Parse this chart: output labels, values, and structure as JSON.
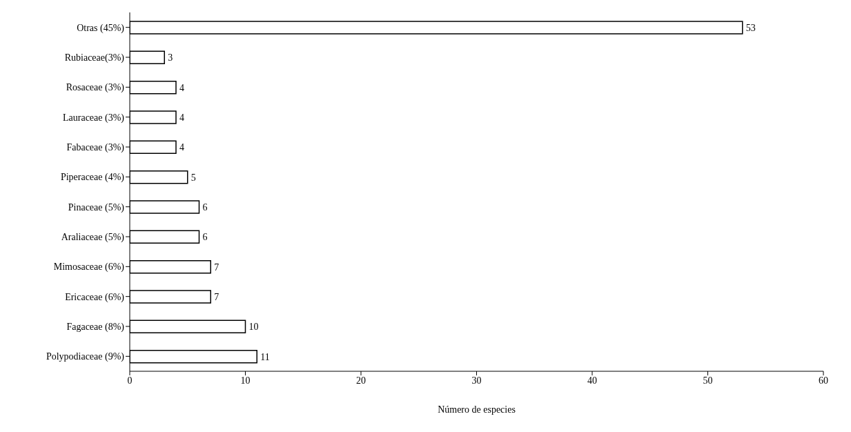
{
  "chart_data": {
    "type": "bar",
    "orientation": "horizontal",
    "categories": [
      "Otras (45%)",
      "Rubiaceae(3%)",
      "Rosaceae (3%)",
      "Lauraceae (3%)",
      "Fabaceae (3%)",
      "Piperaceae (4%)",
      "Pinaceae (5%)",
      "Araliaceae (5%)",
      "Mimosaceae (6%)",
      "Ericaceae (6%)",
      "Fagaceae (8%)",
      "Polypodiaceae (9%)"
    ],
    "values": [
      53,
      3,
      4,
      4,
      4,
      5,
      6,
      6,
      7,
      7,
      10,
      11
    ],
    "color": "#ffffff",
    "xlim": [
      0,
      60
    ],
    "xticks": [
      0,
      10,
      20,
      30,
      40,
      50,
      60
    ],
    "xlabel": "Número de especies",
    "data_labels": true,
    "grid": false,
    "legend": false
  }
}
